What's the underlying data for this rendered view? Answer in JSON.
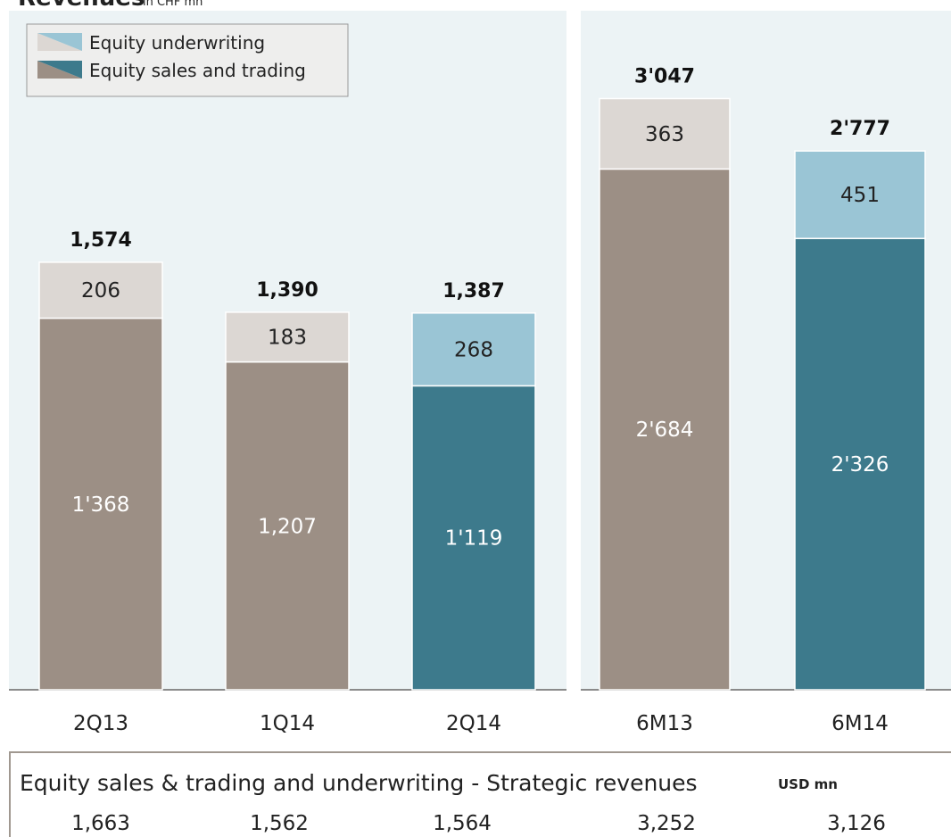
{
  "chart_data": [
    {
      "type": "stacked_bar",
      "title": "Revenues",
      "subtitle": "in CHF mn",
      "categories": [
        "2Q13",
        "1Q14",
        "2Q14"
      ],
      "ylim": [
        0,
        2500
      ],
      "legend": "top-left",
      "series": [
        {
          "name": "Equity sales and trading",
          "colors": [
            "#9c8f85",
            "#9c8f85",
            "#3d7a8c"
          ],
          "values": [
            1368,
            1207,
            1119
          ],
          "value_labels": [
            "1'368",
            "1,207",
            "1'119"
          ]
        },
        {
          "name": "Equity underwriting",
          "colors": [
            "#dcd7d3",
            "#dcd7d3",
            "#9ac5d5"
          ],
          "values": [
            206,
            183,
            268
          ]
        }
      ],
      "totals": [
        1574,
        1390,
        1387
      ],
      "total_labels": [
        "1,574",
        "1,390",
        "1,387"
      ]
    },
    {
      "type": "stacked_bar",
      "categories": [
        "6M13",
        "6M14"
      ],
      "ylim": [
        0,
        3500
      ],
      "series": [
        {
          "colors": [
            "#9c8f85",
            "#3d7a8c"
          ],
          "values": [
            2684,
            2326
          ],
          "value_labels": [
            "2'684",
            "2'326"
          ]
        },
        {
          "colors": [
            "#dcd7d3",
            "#9ac5d5"
          ],
          "values": [
            363,
            451
          ]
        }
      ],
      "totals": [
        3047,
        2777
      ],
      "total_labels": [
        "3'047",
        "2'777"
      ]
    }
  ],
  "table": {
    "title": "Equity sales & trading and underwriting - Strategic revenues",
    "unit": "USD mn",
    "values": [
      "1,663",
      "1,562",
      "1,564",
      "3,252",
      "3,126"
    ]
  }
}
